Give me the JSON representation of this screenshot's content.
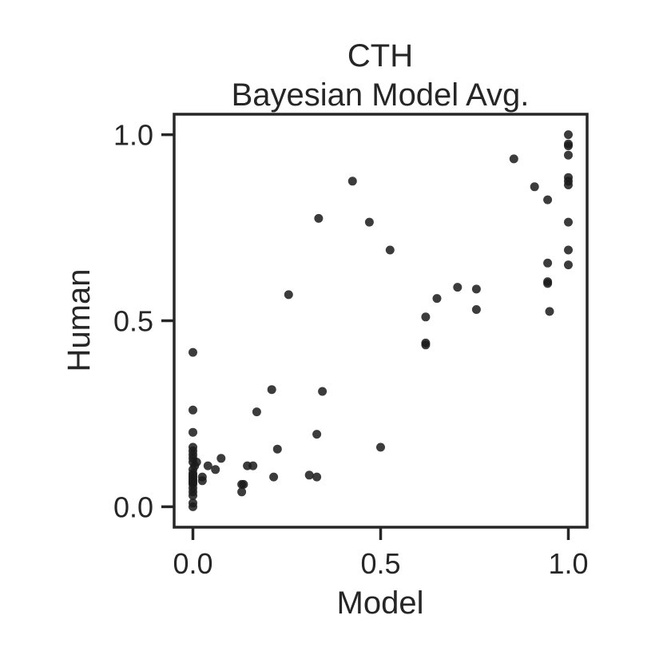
{
  "chart_data": {
    "type": "scatter",
    "title": "CTH",
    "subtitle": "Bayesian Model Avg.",
    "xlabel": "Model",
    "ylabel": "Human",
    "xlim": [
      -0.05,
      1.05
    ],
    "ylim": [
      -0.055,
      1.055
    ],
    "xticks": [
      {
        "value": 0.0,
        "label": "0.0"
      },
      {
        "value": 0.5,
        "label": "0.5"
      },
      {
        "value": 1.0,
        "label": "1.0"
      }
    ],
    "yticks": [
      {
        "value": 0.0,
        "label": "0.0"
      },
      {
        "value": 0.5,
        "label": "0.5"
      },
      {
        "value": 1.0,
        "label": "1.0"
      }
    ],
    "grid": false,
    "legend": "none",
    "marker_color": "#1a1a1a",
    "series": [
      {
        "points": [
          [
            0.0,
            0.415
          ],
          [
            0.0,
            0.26
          ],
          [
            0.0,
            0.2
          ],
          [
            0.0,
            0.16
          ],
          [
            0.0,
            0.15
          ],
          [
            0.0,
            0.14
          ],
          [
            0.0,
            0.13
          ],
          [
            0.0,
            0.12
          ],
          [
            0.0,
            0.1
          ],
          [
            0.0,
            0.09
          ],
          [
            0.0,
            0.085
          ],
          [
            0.0,
            0.08
          ],
          [
            0.0,
            0.075
          ],
          [
            0.0,
            0.07
          ],
          [
            0.0,
            0.065
          ],
          [
            0.0,
            0.06
          ],
          [
            0.0,
            0.05
          ],
          [
            0.0,
            0.04
          ],
          [
            0.0,
            0.03
          ],
          [
            0.0,
            0.01
          ],
          [
            0.0,
            0.0
          ],
          [
            0.005,
            0.11
          ],
          [
            0.01,
            0.12
          ],
          [
            0.025,
            0.08
          ],
          [
            0.025,
            0.07
          ],
          [
            0.04,
            0.11
          ],
          [
            0.06,
            0.1
          ],
          [
            0.075,
            0.13
          ],
          [
            0.13,
            0.06
          ],
          [
            0.13,
            0.04
          ],
          [
            0.135,
            0.06
          ],
          [
            0.145,
            0.11
          ],
          [
            0.16,
            0.11
          ],
          [
            0.17,
            0.255
          ],
          [
            0.21,
            0.315
          ],
          [
            0.215,
            0.08
          ],
          [
            0.225,
            0.155
          ],
          [
            0.255,
            0.57
          ],
          [
            0.31,
            0.085
          ],
          [
            0.33,
            0.08
          ],
          [
            0.33,
            0.195
          ],
          [
            0.335,
            0.775
          ],
          [
            0.345,
            0.31
          ],
          [
            0.425,
            0.875
          ],
          [
            0.47,
            0.765
          ],
          [
            0.5,
            0.16
          ],
          [
            0.525,
            0.69
          ],
          [
            0.62,
            0.51
          ],
          [
            0.62,
            0.44
          ],
          [
            0.62,
            0.435
          ],
          [
            0.65,
            0.56
          ],
          [
            0.705,
            0.59
          ],
          [
            0.755,
            0.585
          ],
          [
            0.755,
            0.53
          ],
          [
            0.855,
            0.935
          ],
          [
            0.91,
            0.86
          ],
          [
            0.945,
            0.825
          ],
          [
            0.945,
            0.655
          ],
          [
            0.945,
            0.6
          ],
          [
            0.945,
            0.605
          ],
          [
            0.95,
            0.525
          ],
          [
            1.0,
            1.0
          ],
          [
            1.0,
            0.975
          ],
          [
            1.0,
            0.97
          ],
          [
            1.0,
            0.945
          ],
          [
            1.0,
            0.885
          ],
          [
            1.0,
            0.875
          ],
          [
            1.0,
            0.865
          ],
          [
            1.0,
            0.765
          ],
          [
            1.0,
            0.69
          ],
          [
            1.0,
            0.65
          ]
        ]
      }
    ]
  }
}
